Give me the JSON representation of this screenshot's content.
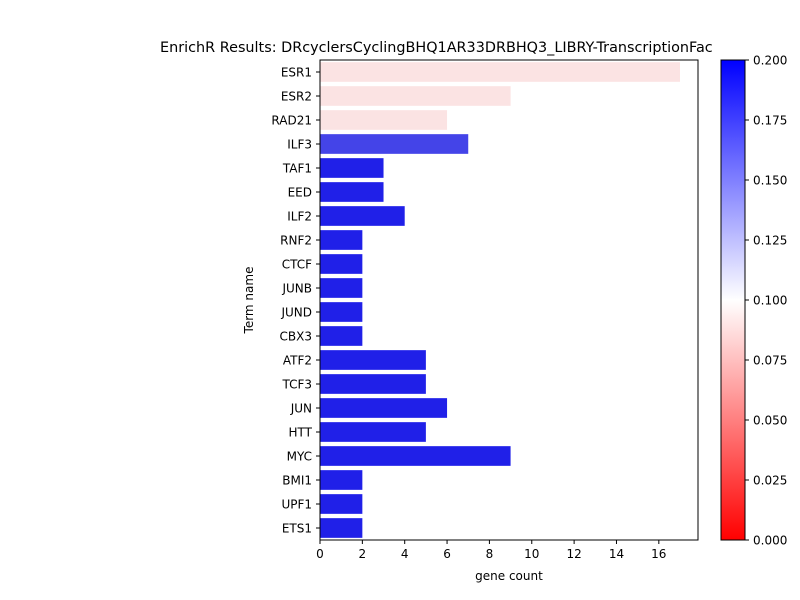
{
  "chart_data": {
    "type": "bar",
    "orientation": "horizontal",
    "title": "EnrichR Results: DRcyclersCyclingBHQ1AR33DRBHQ3_LIBRY-TranscriptionFac",
    "xlabel": "gene count",
    "ylabel": "Term name",
    "xlim": [
      0,
      17.85
    ],
    "xticks": [
      "0",
      "2",
      "4",
      "6",
      "8",
      "10",
      "12",
      "14",
      "16"
    ],
    "categories": [
      "ESR1",
      "ESR2",
      "RAD21",
      "ILF3",
      "TAF1",
      "EED",
      "ILF2",
      "RNF2",
      "CTCF",
      "JUNB",
      "JUND",
      "CBX3",
      "ATF2",
      "TCF3",
      "JUN",
      "HTT",
      "MYC",
      "BMI1",
      "UPF1",
      "ETS1"
    ],
    "values": [
      17,
      9,
      6,
      7,
      3,
      3,
      4,
      2,
      2,
      2,
      2,
      2,
      5,
      5,
      6,
      5,
      9,
      2,
      2,
      2
    ],
    "bar_colors": [
      "#fbe3e3",
      "#fbe3e3",
      "#fbe3e3",
      "#4444e8",
      "#2020e8",
      "#2020e8",
      "#2020e8",
      "#2020e8",
      "#2020e8",
      "#2020e8",
      "#2020e8",
      "#2020e8",
      "#2020e8",
      "#2020e8",
      "#2020e8",
      "#2020e8",
      "#2020e8",
      "#2020e8",
      "#2020e8",
      "#2020e8"
    ],
    "colorbar": {
      "range": [
        0.0,
        0.2
      ],
      "ticks": [
        "0.000",
        "0.025",
        "0.050",
        "0.075",
        "0.100",
        "0.125",
        "0.150",
        "0.175",
        "0.200"
      ],
      "colors": {
        "low": "#ff0000",
        "mid": "#ffffff",
        "high": "#0000ff"
      }
    },
    "grid": false
  }
}
